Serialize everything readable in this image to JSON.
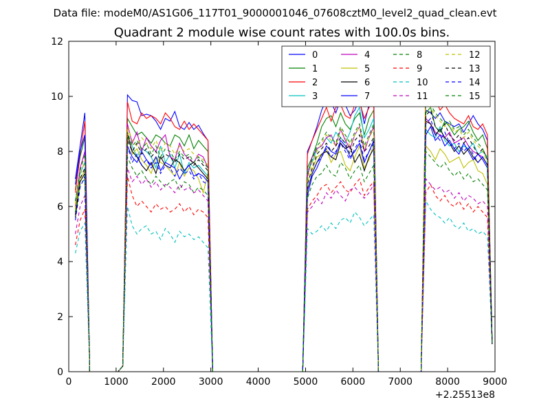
{
  "chart_data": {
    "type": "line",
    "suptitle": "Data file: modeM0/AS1G06_117T01_9000001046_07608cztM0_level2_quad_clean.evt",
    "title": "Quadrant 2 module wise count rates with 100.0s bins.",
    "xlabel": "",
    "ylabel": "",
    "x_offset_label": "+2.25513e8",
    "xlim": [
      0,
      9000
    ],
    "ylim": [
      0,
      12
    ],
    "xticks": [
      0,
      1000,
      2000,
      3000,
      4000,
      5000,
      6000,
      7000,
      8000,
      9000
    ],
    "yticks": [
      0,
      2,
      4,
      6,
      8,
      10,
      12
    ],
    "xtick_labels": [
      "0",
      "1000",
      "2000",
      "3000",
      "4000",
      "5000",
      "6000",
      "7000",
      "8000",
      "9000"
    ],
    "ytick_labels": [
      "0",
      "2",
      "4",
      "6",
      "8",
      "10",
      "12"
    ],
    "legend_position": "top-right",
    "segments": [
      {
        "start": 140,
        "n": 3
      },
      {
        "start": 1140,
        "n": 19
      },
      {
        "start": 5040,
        "n": 15
      },
      {
        "start": 7540,
        "n": 14
      }
    ],
    "series": [
      {
        "name": "0",
        "color": "#0000ff",
        "dash": "solid",
        "seg": [
          [
            7.0,
            8.2,
            9.4
          ],
          [
            0.2,
            10.05,
            9.85,
            9.8,
            9.3,
            9.35,
            9.3,
            9.1,
            8.8,
            9.2,
            9.1,
            9.45,
            8.9,
            8.8,
            9.05,
            8.8,
            8.95,
            8.65,
            8.4
          ],
          [
            8.0,
            8.4,
            8.9,
            9.5,
            9.9,
            9.8,
            9.4,
            9.9,
            9.7,
            9.3,
            9.5,
            9.9,
            9.0,
            9.7,
            10.0
          ],
          [
            9.5,
            9.4,
            9.2,
            9.4,
            9.1,
            9.0,
            8.9,
            9.0,
            8.7,
            9.0,
            9.3,
            9.0,
            8.8,
            8.4
          ]
        ]
      },
      {
        "name": "1",
        "color": "#008000",
        "dash": "solid",
        "seg": [
          [
            6.6,
            7.8,
            8.5
          ],
          [
            0.2,
            9.2,
            8.9,
            8.6,
            8.7,
            8.5,
            8.3,
            8.6,
            8.5,
            8.3,
            8.2,
            8.6,
            8.5,
            8.2,
            8.6,
            8.1,
            8.4,
            8.2,
            8.0
          ],
          [
            7.4,
            7.8,
            8.3,
            8.9,
            9.2,
            9.3,
            8.9,
            9.4,
            9.0,
            8.8,
            9.2,
            9.4,
            8.6,
            9.2,
            9.5
          ],
          [
            9.4,
            9.6,
            8.9,
            8.7,
            9.1,
            8.9,
            8.6,
            8.8,
            8.9,
            9.1,
            8.7,
            8.4,
            8.6,
            8.1
          ]
        ]
      },
      {
        "name": "2",
        "color": "#ff0000",
        "dash": "solid",
        "seg": [
          [
            6.5,
            7.9,
            9.1
          ],
          [
            0.2,
            9.8,
            9.1,
            9.0,
            9.4,
            9.2,
            9.3,
            9.2,
            9.0,
            9.4,
            9.2,
            8.9,
            8.8,
            9.1,
            8.8,
            9.0,
            8.8,
            8.6,
            8.4
          ],
          [
            7.9,
            8.4,
            8.8,
            9.2,
            9.6,
            9.1,
            9.6,
            9.7,
            9.3,
            9.2,
            9.7,
            9.8,
            9.2,
            9.6,
            9.8
          ],
          [
            10.7,
            10.8,
            9.9,
            9.5,
            9.7,
            9.4,
            9.2,
            9.1,
            9.0,
            9.3,
            8.9,
            8.8,
            9.0,
            8.6
          ]
        ]
      },
      {
        "name": "3",
        "color": "#00bfbf",
        "dash": "solid",
        "seg": [
          [
            6.2,
            7.2,
            7.6
          ],
          [
            0.2,
            8.6,
            8.2,
            7.8,
            8.1,
            8.0,
            7.8,
            7.4,
            8.2,
            7.6,
            7.9,
            7.4,
            7.9,
            7.2,
            7.6,
            7.4,
            7.5,
            7.3,
            7.1
          ],
          [
            7.3,
            7.6,
            8.1,
            8.2,
            8.5,
            8.3,
            8.7,
            8.5,
            8.3,
            8.7,
            9.3,
            9.6,
            8.5,
            8.8,
            9.2
          ],
          [
            8.8,
            8.6,
            8.5,
            8.9,
            8.4,
            8.2,
            8.3,
            8.0,
            8.2,
            8.1,
            8.3,
            7.9,
            8.0,
            7.8
          ]
        ]
      },
      {
        "name": "4",
        "color": "#bf00bf",
        "dash": "solid",
        "seg": [
          [
            6.0,
            7.4,
            8.0
          ],
          [
            0.2,
            9.0,
            8.3,
            8.7,
            8.0,
            8.5,
            8.2,
            8.0,
            8.4,
            8.6,
            7.8,
            7.7,
            8.3,
            7.9,
            7.7,
            7.6,
            7.9,
            7.8,
            7.4
          ],
          [
            7.1,
            7.8,
            8.1,
            8.2,
            8.5,
            8.6,
            8.2,
            8.8,
            8.4,
            8.1,
            8.6,
            8.9,
            8.0,
            8.5,
            8.9
          ],
          [
            9.2,
            9.0,
            8.7,
            8.6,
            8.5,
            8.7,
            8.3,
            8.4,
            8.5,
            8.2,
            8.0,
            7.9,
            7.8,
            7.5
          ]
        ]
      },
      {
        "name": "5",
        "color": "#bfbf00",
        "dash": "solid",
        "seg": [
          [
            5.9,
            7.0,
            7.3
          ],
          [
            0.2,
            8.8,
            7.9,
            8.1,
            7.7,
            7.5,
            7.2,
            7.8,
            7.6,
            7.5,
            7.3,
            7.1,
            7.6,
            7.1,
            7.4,
            7.3,
            7.0,
            6.5,
            7.2
          ],
          [
            6.9,
            7.3,
            7.8,
            7.9,
            8.1,
            7.6,
            7.9,
            8.0,
            7.5,
            7.3,
            7.8,
            8.2,
            7.4,
            7.7,
            8.3
          ],
          [
            8.2,
            8.0,
            7.7,
            8.1,
            7.9,
            7.6,
            7.7,
            7.8,
            7.4,
            7.6,
            7.7,
            7.3,
            7.2,
            6.8
          ]
        ]
      },
      {
        "name": "6",
        "color": "#000000",
        "dash": "solid",
        "seg": [
          [
            5.6,
            6.9,
            7.2
          ],
          [
            0.2,
            8.6,
            8.0,
            7.8,
            7.5,
            7.3,
            7.6,
            7.2,
            7.8,
            7.5,
            7.4,
            7.7,
            7.6,
            7.3,
            7.5,
            7.6,
            7.4,
            7.2,
            7.0
          ],
          [
            6.6,
            7.2,
            7.6,
            7.9,
            8.0,
            7.8,
            7.7,
            8.3,
            8.1,
            8.2,
            7.6,
            7.9,
            7.3,
            7.8,
            8.1
          ],
          [
            9.1,
            9.0,
            8.6,
            8.8,
            8.5,
            8.3,
            8.0,
            8.2,
            7.9,
            8.1,
            7.8,
            7.6,
            7.8,
            7.5
          ]
        ]
      },
      {
        "name": "7",
        "color": "#0000ff",
        "dash": "solid",
        "seg": [
          [
            6.8,
            8.0,
            8.6
          ],
          [
            0.2,
            8.2,
            7.8,
            7.6,
            8.0,
            7.7,
            7.5,
            7.8,
            7.3,
            7.6,
            7.5,
            7.4,
            7.0,
            7.3,
            7.5,
            7.1,
            7.2,
            7.1,
            6.9
          ],
          [
            6.4,
            7.1,
            7.4,
            7.8,
            8.2,
            8.0,
            7.9,
            8.4,
            8.2,
            7.8,
            8.0,
            8.3,
            7.6,
            8.0,
            8.4
          ],
          [
            8.6,
            8.9,
            8.4,
            8.6,
            8.2,
            8.4,
            8.1,
            7.9,
            8.3,
            8.0,
            7.7,
            7.9,
            7.7,
            7.4
          ]
        ]
      },
      {
        "name": "8",
        "color": "#008000",
        "dash": "dashed",
        "seg": [
          [
            5.8,
            6.8,
            7.0
          ],
          [
            0.2,
            7.8,
            7.4,
            7.1,
            7.3,
            7.0,
            6.8,
            7.1,
            6.9,
            6.7,
            6.9,
            7.0,
            6.6,
            6.9,
            6.8,
            6.5,
            6.7,
            6.6,
            6.4
          ],
          [
            6.3,
            6.8,
            7.1,
            7.2,
            7.5,
            7.2,
            7.1,
            7.6,
            7.4,
            7.0,
            7.3,
            7.5,
            6.9,
            7.2,
            7.5
          ],
          [
            8.0,
            7.8,
            7.6,
            7.4,
            7.6,
            7.3,
            7.1,
            7.3,
            7.0,
            7.2,
            6.9,
            7.0,
            6.8,
            6.6
          ]
        ]
      },
      {
        "name": "9",
        "color": "#ff0000",
        "dash": "dashed",
        "seg": [
          [
            4.6,
            5.5,
            5.9
          ],
          [
            0.2,
            7.1,
            6.4,
            6.0,
            6.2,
            6.0,
            5.8,
            6.1,
            5.9,
            6.0,
            5.8,
            5.9,
            6.1,
            5.8,
            6.0,
            5.7,
            5.9,
            5.8,
            5.6
          ],
          [
            5.9,
            6.2,
            6.4,
            6.7,
            6.8,
            6.5,
            6.7,
            6.9,
            6.6,
            6.5,
            6.8,
            7.0,
            6.4,
            6.7,
            6.9
          ],
          [
            6.5,
            6.8,
            6.4,
            6.2,
            6.4,
            6.1,
            6.0,
            6.2,
            5.9,
            6.1,
            5.8,
            6.0,
            5.8,
            5.6
          ]
        ]
      },
      {
        "name": "10",
        "color": "#00bfbf",
        "dash": "dashed",
        "seg": [
          [
            4.3,
            5.1,
            5.4
          ],
          [
            0.2,
            6.0,
            5.3,
            5.0,
            5.2,
            5.3,
            5.0,
            5.1,
            4.8,
            5.2,
            5.0,
            4.7,
            5.1,
            4.9,
            5.0,
            4.8,
            4.9,
            4.7,
            4.5
          ],
          [
            5.2,
            5.0,
            5.1,
            5.3,
            5.1,
            5.4,
            5.2,
            5.5,
            5.6,
            5.4,
            5.8,
            5.6,
            5.3,
            5.5,
            5.7
          ],
          [
            6.2,
            5.9,
            5.7,
            5.6,
            5.4,
            5.6,
            5.3,
            5.2,
            5.4,
            5.1,
            5.2,
            5.0,
            5.1,
            4.9
          ]
        ]
      },
      {
        "name": "11",
        "color": "#bf00bf",
        "dash": "dashed",
        "seg": [
          [
            5.0,
            6.0,
            6.4
          ],
          [
            0.2,
            7.4,
            6.9,
            7.1,
            6.8,
            7.0,
            6.7,
            6.9,
            6.6,
            6.8,
            6.7,
            6.5,
            6.8,
            6.6,
            6.7,
            6.5,
            6.6,
            6.4,
            6.2
          ],
          [
            5.8,
            6.0,
            6.3,
            6.1,
            6.5,
            6.3,
            6.6,
            6.4,
            6.2,
            6.6,
            6.7,
            6.5,
            6.3,
            6.5,
            6.8
          ],
          [
            7.0,
            6.8,
            6.6,
            6.7,
            6.5,
            6.6,
            6.3,
            6.5,
            6.2,
            6.4,
            6.3,
            6.1,
            6.2,
            6.0
          ]
        ]
      },
      {
        "name": "12",
        "color": "#bfbf00",
        "dash": "dashed",
        "seg": [
          [
            6.1,
            7.1,
            7.7
          ],
          [
            0.2,
            8.9,
            8.4,
            8.2,
            8.5,
            8.3,
            8.1,
            8.4,
            8.0,
            8.3,
            8.2,
            7.9,
            8.2,
            8.0,
            8.1,
            7.9,
            7.8,
            7.7,
            7.5
          ],
          [
            7.0,
            7.6,
            8.0,
            8.3,
            8.6,
            8.4,
            8.2,
            8.8,
            8.5,
            8.2,
            8.6,
            8.9,
            8.1,
            8.5,
            8.8
          ],
          [
            10.0,
            9.6,
            9.3,
            9.1,
            8.9,
            9.0,
            8.7,
            8.8,
            8.5,
            8.7,
            8.4,
            8.2,
            8.0,
            7.6
          ]
        ]
      },
      {
        "name": "13",
        "color": "#000000",
        "dash": "dashed",
        "seg": [
          [
            5.7,
            7.0,
            7.4
          ],
          [
            0.2,
            8.4,
            8.0,
            8.3,
            7.9,
            8.1,
            7.8,
            8.0,
            7.7,
            7.9,
            7.8,
            7.6,
            7.9,
            7.7,
            7.8,
            7.5,
            7.7,
            7.5,
            7.3
          ],
          [
            6.8,
            7.4,
            7.9,
            8.1,
            8.3,
            8.0,
            8.2,
            8.5,
            8.3,
            7.9,
            8.4,
            8.6,
            8.0,
            8.2,
            8.5
          ],
          [
            9.3,
            9.5,
            8.9,
            8.7,
            9.0,
            8.6,
            8.4,
            8.6,
            8.3,
            8.5,
            8.2,
            7.9,
            8.1,
            7.7
          ]
        ]
      },
      {
        "name": "14",
        "color": "#0000ff",
        "dash": "dashed",
        "seg": [
          [
            5.5,
            6.7,
            7.1
          ],
          [
            0.2,
            8.2,
            7.6,
            7.9,
            7.5,
            7.7,
            7.4,
            7.6,
            7.2,
            7.5,
            7.4,
            7.1,
            7.4,
            7.2,
            7.3,
            7.0,
            7.2,
            6.9,
            6.8
          ],
          [
            6.6,
            7.2,
            7.6,
            7.8,
            8.1,
            7.8,
            8.0,
            8.3,
            8.0,
            7.7,
            8.1,
            8.4,
            7.7,
            8.0,
            8.3
          ],
          [
            9.0,
            9.2,
            8.6,
            8.4,
            8.7,
            8.3,
            8.1,
            8.3,
            8.0,
            8.2,
            7.9,
            7.6,
            7.8,
            7.5
          ]
        ]
      },
      {
        "name": "15",
        "color": "#008000",
        "dash": "dashed",
        "seg": [
          [
            6.2,
            7.3,
            7.9
          ],
          [
            0.2,
            8.7,
            8.2,
            8.4,
            8.1,
            8.3,
            7.9,
            8.2,
            7.8,
            8.1,
            8.0,
            7.7,
            8.0,
            7.8,
            7.9,
            7.6,
            7.8,
            7.6,
            7.4
          ],
          [
            7.2,
            7.7,
            8.2,
            8.4,
            8.7,
            8.5,
            8.3,
            8.9,
            8.6,
            8.3,
            8.7,
            9.0,
            8.2,
            8.6,
            9.0
          ],
          [
            10.2,
            9.7,
            9.4,
            9.2,
            9.0,
            9.1,
            8.8,
            8.9,
            8.6,
            8.8,
            8.5,
            8.3,
            8.1,
            7.7
          ]
        ]
      }
    ]
  }
}
